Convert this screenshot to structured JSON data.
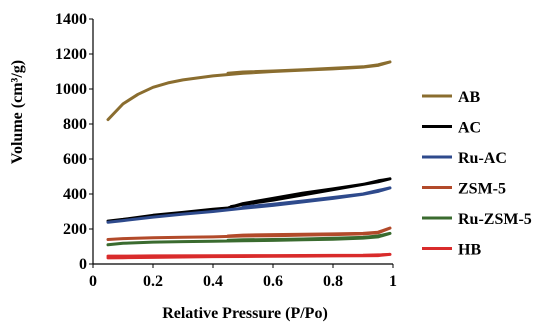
{
  "chart_data": {
    "type": "line",
    "title": "",
    "xlabel": "Relative Pressure (P/Po)",
    "ylabel": "Volume (cm³/g)",
    "xlim": [
      0,
      1
    ],
    "ylim": [
      0,
      1400
    ],
    "x_ticks": [
      "0",
      "0.2",
      "0.4",
      "0.6",
      "0.8",
      "1"
    ],
    "y_ticks": [
      "0",
      "200",
      "400",
      "600",
      "800",
      "1000",
      "1200",
      "1400"
    ],
    "grid": false,
    "legend_position": "right",
    "series": [
      {
        "name": "AB",
        "color": "#8a6d2f",
        "x": [
          0.05,
          0.1,
          0.15,
          0.2,
          0.25,
          0.3,
          0.4,
          0.5,
          0.6,
          0.7,
          0.8,
          0.9,
          0.95,
          0.99,
          0.95,
          0.9,
          0.8,
          0.7,
          0.6,
          0.5,
          0.45
        ],
        "y": [
          825,
          915,
          970,
          1010,
          1035,
          1052,
          1075,
          1090,
          1100,
          1108,
          1115,
          1125,
          1135,
          1155,
          1138,
          1127,
          1118,
          1110,
          1103,
          1097,
          1090
        ]
      },
      {
        "name": "AC",
        "color": "#000000",
        "x": [
          0.05,
          0.1,
          0.2,
          0.3,
          0.4,
          0.45,
          0.5,
          0.6,
          0.7,
          0.8,
          0.9,
          0.95,
          0.99,
          0.95,
          0.9,
          0.8,
          0.7,
          0.6,
          0.5,
          0.46
        ],
        "y": [
          245,
          255,
          278,
          295,
          313,
          320,
          345,
          375,
          405,
          430,
          455,
          470,
          487,
          475,
          455,
          425,
          395,
          365,
          340,
          328
        ]
      },
      {
        "name": "Ru-AC",
        "color": "#2e4a8c",
        "x": [
          0.05,
          0.1,
          0.2,
          0.3,
          0.4,
          0.5,
          0.6,
          0.7,
          0.8,
          0.9,
          0.95,
          0.99,
          0.95,
          0.9,
          0.8,
          0.7,
          0.6,
          0.5
        ],
        "y": [
          238,
          248,
          268,
          285,
          300,
          318,
          335,
          355,
          375,
          398,
          415,
          435,
          420,
          400,
          380,
          360,
          342,
          325
        ]
      },
      {
        "name": "ZSM-5",
        "color": "#b24a2a",
        "x": [
          0.05,
          0.1,
          0.2,
          0.3,
          0.4,
          0.5,
          0.6,
          0.7,
          0.8,
          0.9,
          0.95,
          0.99,
          0.95,
          0.9,
          0.8,
          0.7,
          0.6,
          0.5,
          0.45
        ],
        "y": [
          140,
          145,
          150,
          153,
          155,
          160,
          162,
          165,
          168,
          172,
          178,
          205,
          182,
          175,
          172,
          170,
          168,
          165,
          160
        ]
      },
      {
        "name": "Ru-ZSM-5",
        "color": "#3a6b2f",
        "x": [
          0.05,
          0.1,
          0.2,
          0.3,
          0.4,
          0.5,
          0.6,
          0.7,
          0.8,
          0.9,
          0.95,
          0.99,
          0.95,
          0.9,
          0.8,
          0.7,
          0.6,
          0.5,
          0.45
        ],
        "y": [
          110,
          118,
          125,
          128,
          130,
          133,
          135,
          138,
          142,
          148,
          155,
          175,
          160,
          152,
          147,
          143,
          140,
          138,
          136
        ]
      },
      {
        "name": "HB",
        "color": "#d92b2b",
        "x": [
          0.05,
          0.1,
          0.2,
          0.3,
          0.4,
          0.5,
          0.6,
          0.7,
          0.8,
          0.9,
          0.95,
          0.99,
          0.95,
          0.9,
          0.8,
          0.6,
          0.4,
          0.2,
          0.1,
          0.05
        ],
        "y": [
          35,
          36,
          38,
          40,
          42,
          43,
          44,
          45,
          46,
          47,
          48,
          55,
          52,
          50,
          49,
          48,
          47,
          46,
          45,
          45
        ]
      }
    ]
  }
}
